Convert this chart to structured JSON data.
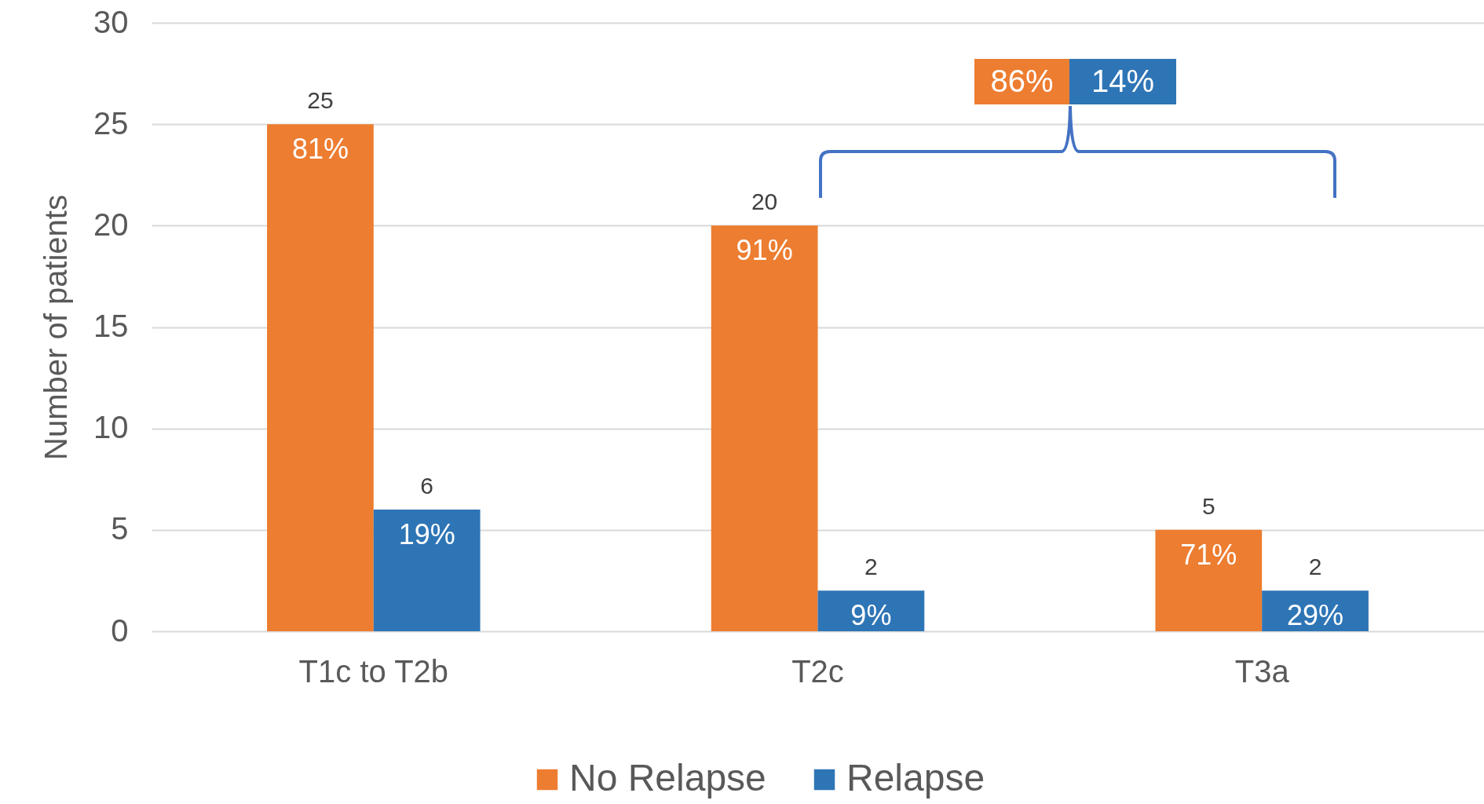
{
  "chart_data": {
    "type": "bar",
    "ylabel": "Number of patients",
    "categories": [
      "T1c to T2b",
      "T2c",
      "T3a"
    ],
    "series": [
      {
        "name": "No Relapse",
        "color": "#ed7d31",
        "values": [
          25,
          20,
          5
        ]
      },
      {
        "name": "Relapse",
        "color": "#2e75b6",
        "values": [
          6,
          2,
          2
        ]
      }
    ],
    "ylim": [
      0,
      30
    ],
    "yticks": [
      0,
      5,
      10,
      15,
      20,
      25,
      30
    ],
    "grid": "y",
    "legend": "bottom",
    "data_labels": true,
    "annotations": [
      {
        "text": "81%",
        "x": "T1c to T2b",
        "y": 25
      },
      {
        "text": "91%",
        "x": "T2c",
        "y": 20
      },
      {
        "text": "71%",
        "x": "T3a",
        "y": 5
      },
      {
        "text": "19%",
        "x": "T1c to T2b",
        "y": 6
      },
      {
        "text": "9%",
        "x": "T2c",
        "y": 2
      },
      {
        "text": "29%",
        "x": "T3a",
        "y": 2
      },
      "86%",
      "14%"
    ]
  }
}
